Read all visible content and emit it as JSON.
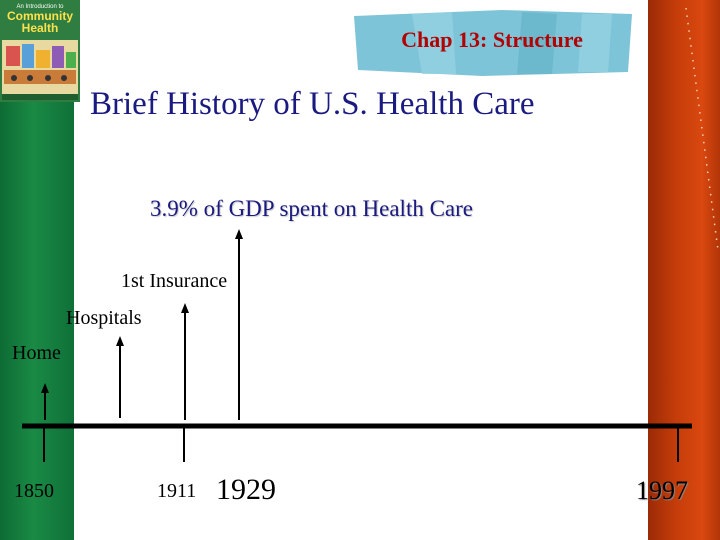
{
  "book": {
    "line1": "An Introduction to",
    "line2": "Community",
    "line3": "Health"
  },
  "header": {
    "chapter": "Chap 13: Structure"
  },
  "slide": {
    "title": "Brief History of U.S. Health Care"
  },
  "timeline": {
    "events": {
      "home": "Home",
      "hospitals": "Hospitals",
      "insurance": "1st Insurance",
      "gdp": "3.9% of GDP spent on Health Care"
    },
    "years": {
      "y1850": "1850",
      "y1911": "1911",
      "y1929": "1929",
      "y1997": "1997"
    }
  },
  "colors": {
    "left_bar": "#1a8a45",
    "right_bar": "#c63d0a",
    "banner": "#7ec4d8",
    "chapter_text": "#b30000",
    "title_text": "#1a1a80"
  }
}
